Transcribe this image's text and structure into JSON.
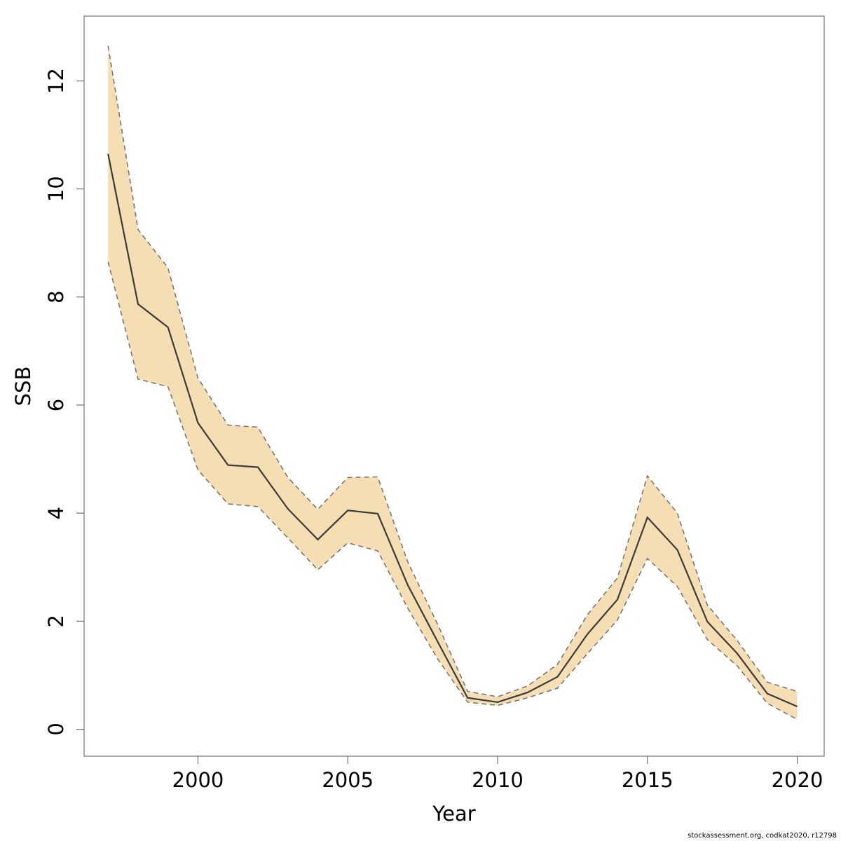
{
  "chart_data": {
    "type": "line",
    "title": "",
    "xlabel": "Year",
    "ylabel": "SSB",
    "xlim": [
      1996.2,
      2020.9
    ],
    "ylim": [
      -0.5,
      13.2
    ],
    "xticks": [
      2000,
      2005,
      2010,
      2015,
      2020
    ],
    "yticks": [
      0,
      2,
      4,
      6,
      8,
      10,
      12
    ],
    "grid": false,
    "legend": "none",
    "colors": {
      "band": "#f5deb3",
      "line": "#3a3a3a",
      "bounds": "#777777"
    },
    "x": [
      1997,
      1998,
      1999,
      2000,
      2001,
      2002,
      2003,
      2004,
      2005,
      2006,
      2007,
      2008,
      2009,
      2010,
      2011,
      2012,
      2013,
      2014,
      2015,
      2016,
      2017,
      2018,
      2019,
      2020
    ],
    "series": [
      {
        "role": "estimate",
        "values": [
          10.65,
          7.87,
          7.44,
          5.67,
          4.89,
          4.85,
          4.08,
          3.51,
          4.05,
          3.99,
          2.67,
          1.62,
          0.58,
          0.5,
          0.68,
          0.97,
          1.76,
          2.4,
          3.92,
          3.32,
          1.99,
          1.4,
          0.66,
          0.42
        ]
      },
      {
        "role": "upper",
        "values": [
          12.65,
          9.25,
          8.54,
          6.5,
          5.63,
          5.59,
          4.66,
          4.07,
          4.66,
          4.67,
          3.1,
          1.94,
          0.7,
          0.6,
          0.8,
          1.2,
          2.12,
          2.8,
          4.69,
          4.0,
          2.3,
          1.64,
          0.87,
          0.7
        ]
      },
      {
        "role": "lower",
        "values": [
          8.65,
          6.48,
          6.34,
          4.8,
          4.17,
          4.12,
          3.54,
          2.95,
          3.45,
          3.3,
          2.24,
          1.3,
          0.5,
          0.44,
          0.58,
          0.76,
          1.4,
          2.02,
          3.16,
          2.64,
          1.66,
          1.17,
          0.48,
          0.18
        ]
      }
    ]
  },
  "footer": {
    "text": "stockassessment.org, codkat2020, r12798"
  }
}
